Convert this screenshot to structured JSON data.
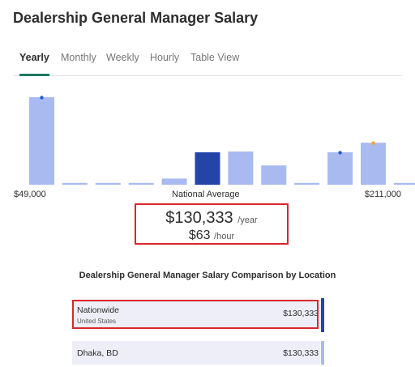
{
  "page": {
    "title": "Dealership General Manager Salary"
  },
  "tabs": [
    {
      "label": "Yearly",
      "active": true
    },
    {
      "label": "Monthly",
      "active": false
    },
    {
      "label": "Weekly",
      "active": false
    },
    {
      "label": "Hourly",
      "active": false
    },
    {
      "label": "Table View",
      "active": false
    }
  ],
  "chart_data": {
    "type": "bar",
    "categories": [
      "1",
      "2",
      "3",
      "4",
      "5",
      "6",
      "7",
      "8",
      "9",
      "10",
      "11",
      "12"
    ],
    "values": [
      100,
      2,
      2,
      2,
      7,
      37,
      38,
      22,
      2,
      37,
      48,
      2
    ],
    "highlight_index": 5,
    "markers": [
      {
        "index": 0,
        "color": "#1f5ec9"
      },
      {
        "index": 9,
        "color": "#1f5ec9"
      },
      {
        "index": 10,
        "color": "#f5a623"
      }
    ],
    "xlabel_min": "$49,000",
    "xlabel_center": "National Average",
    "xlabel_max": "$211,000",
    "colors": {
      "bar": "#a8baf0",
      "highlight": "#2444a8"
    }
  },
  "salary": {
    "yearly": "$130,333",
    "yearly_unit": "/year",
    "hourly": "$63",
    "hourly_unit": "/hour"
  },
  "comparison": {
    "title": "Dealership General Manager Salary Comparison by Location",
    "rows": [
      {
        "location": "Nationwide",
        "sublocation": "United States",
        "salary": "$130,333",
        "bar_color": "#2444a8"
      },
      {
        "location": "Dhaka, BD",
        "sublocation": "",
        "salary": "$130,333",
        "bar_color": "#a8baf0"
      }
    ]
  }
}
